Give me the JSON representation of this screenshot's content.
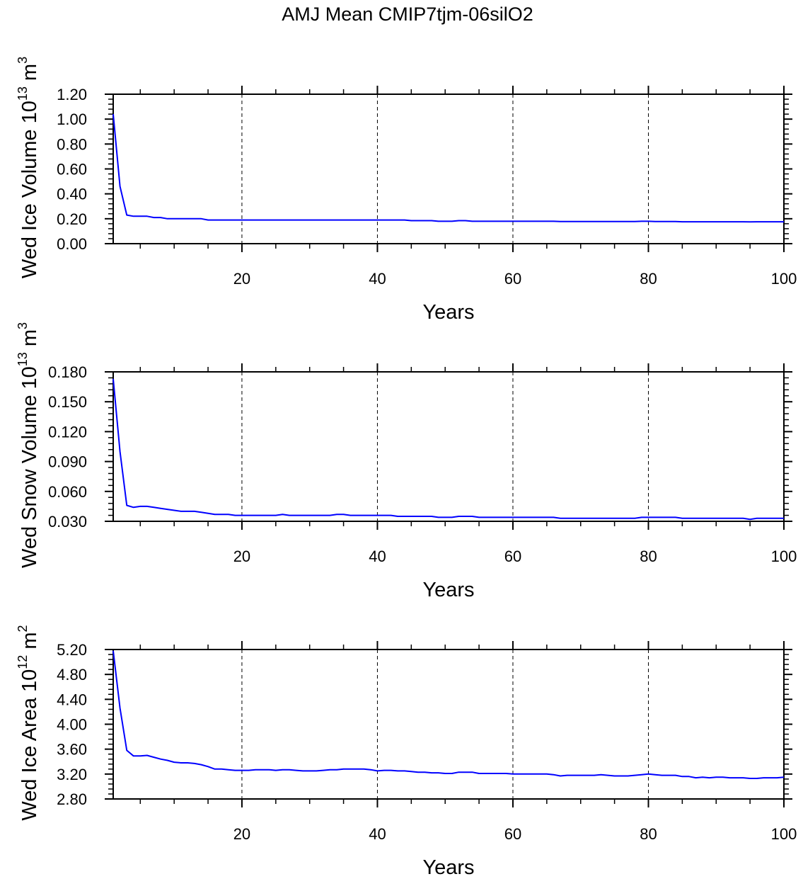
{
  "title": "AMJ Mean CMIP7tjm-06silO2",
  "line_color": "#0000ff",
  "chart_data": [
    {
      "type": "line",
      "xlabel": "Years",
      "ylabel": "Wed Ice Volume",
      "ylabel_units": {
        "base": "10",
        "exp": "13",
        "unit": "m",
        "unit_exp": "3"
      },
      "xlim": [
        1,
        100
      ],
      "ylim": [
        0,
        1.2
      ],
      "xticks": [
        20,
        40,
        60,
        80,
        100
      ],
      "xtick_labels": [
        "20",
        "40",
        "60",
        "80",
        "100"
      ],
      "yticks": [
        0,
        0.2,
        0.4,
        0.6,
        0.8,
        1.0,
        1.2
      ],
      "ytick_labels": [
        "0.00",
        "0.20",
        "0.40",
        "0.60",
        "0.80",
        "1.00",
        "1.20"
      ],
      "y_minor_per_major": 5,
      "grid": "dashed vertical at x major ticks",
      "values": [
        1.04,
        0.46,
        0.23,
        0.22,
        0.22,
        0.22,
        0.21,
        0.21,
        0.2,
        0.2,
        0.2,
        0.2,
        0.2,
        0.2,
        0.19,
        0.19,
        0.19,
        0.19,
        0.19,
        0.19,
        0.19,
        0.19,
        0.19,
        0.19,
        0.19,
        0.19,
        0.19,
        0.19,
        0.19,
        0.19,
        0.19,
        0.19,
        0.19,
        0.19,
        0.19,
        0.19,
        0.19,
        0.19,
        0.19,
        0.19,
        0.19,
        0.19,
        0.19,
        0.19,
        0.185,
        0.185,
        0.185,
        0.185,
        0.18,
        0.18,
        0.18,
        0.185,
        0.185,
        0.18,
        0.18,
        0.18,
        0.18,
        0.18,
        0.18,
        0.18,
        0.18,
        0.18,
        0.18,
        0.18,
        0.18,
        0.18,
        0.178,
        0.178,
        0.178,
        0.178,
        0.178,
        0.178,
        0.178,
        0.178,
        0.178,
        0.178,
        0.178,
        0.178,
        0.18,
        0.18,
        0.178,
        0.178,
        0.178,
        0.178,
        0.176,
        0.176,
        0.176,
        0.176,
        0.176,
        0.176,
        0.176,
        0.176,
        0.176,
        0.176,
        0.175,
        0.176,
        0.176,
        0.176,
        0.176,
        0.176
      ]
    },
    {
      "type": "line",
      "xlabel": "Years",
      "ylabel": "Wed Snow Volume",
      "ylabel_units": {
        "base": "10",
        "exp": "13",
        "unit": "m",
        "unit_exp": "3"
      },
      "xlim": [
        1,
        100
      ],
      "ylim": [
        0.03,
        0.18
      ],
      "xticks": [
        20,
        40,
        60,
        80,
        100
      ],
      "xtick_labels": [
        "20",
        "40",
        "60",
        "80",
        "100"
      ],
      "yticks": [
        0.03,
        0.06,
        0.09,
        0.12,
        0.15,
        0.18
      ],
      "ytick_labels": [
        "0.030",
        "0.060",
        "0.090",
        "0.120",
        "0.150",
        "0.180"
      ],
      "y_minor_per_major": 5,
      "grid": "dashed vertical at x major ticks",
      "values": [
        0.173,
        0.1,
        0.046,
        0.044,
        0.045,
        0.045,
        0.044,
        0.043,
        0.042,
        0.041,
        0.04,
        0.04,
        0.04,
        0.039,
        0.038,
        0.037,
        0.037,
        0.037,
        0.036,
        0.036,
        0.036,
        0.036,
        0.036,
        0.036,
        0.036,
        0.037,
        0.036,
        0.036,
        0.036,
        0.036,
        0.036,
        0.036,
        0.036,
        0.037,
        0.037,
        0.036,
        0.036,
        0.036,
        0.036,
        0.036,
        0.036,
        0.036,
        0.035,
        0.035,
        0.035,
        0.035,
        0.035,
        0.035,
        0.034,
        0.034,
        0.034,
        0.035,
        0.035,
        0.035,
        0.034,
        0.034,
        0.034,
        0.034,
        0.034,
        0.034,
        0.034,
        0.034,
        0.034,
        0.034,
        0.034,
        0.034,
        0.033,
        0.033,
        0.033,
        0.033,
        0.033,
        0.033,
        0.033,
        0.033,
        0.033,
        0.033,
        0.033,
        0.033,
        0.034,
        0.034,
        0.034,
        0.034,
        0.034,
        0.034,
        0.033,
        0.033,
        0.033,
        0.033,
        0.033,
        0.033,
        0.033,
        0.033,
        0.033,
        0.033,
        0.032,
        0.033,
        0.033,
        0.033,
        0.033,
        0.033
      ]
    },
    {
      "type": "line",
      "xlabel": "Years",
      "ylabel": "Wed Ice Area",
      "ylabel_units": {
        "base": "10",
        "exp": "12",
        "unit": "m",
        "unit_exp": "2"
      },
      "xlim": [
        1,
        100
      ],
      "ylim": [
        2.8,
        5.2
      ],
      "xticks": [
        20,
        40,
        60,
        80,
        100
      ],
      "xtick_labels": [
        "20",
        "40",
        "60",
        "80",
        "100"
      ],
      "yticks": [
        2.8,
        3.2,
        3.6,
        4.0,
        4.4,
        4.8,
        5.2
      ],
      "ytick_labels": [
        "2.80",
        "3.20",
        "3.60",
        "4.00",
        "4.40",
        "4.80",
        "5.20"
      ],
      "y_minor_per_major": 5,
      "grid": "dashed vertical at x major ticks",
      "values": [
        5.18,
        4.26,
        3.58,
        3.49,
        3.49,
        3.5,
        3.47,
        3.44,
        3.42,
        3.39,
        3.38,
        3.38,
        3.37,
        3.35,
        3.32,
        3.28,
        3.28,
        3.27,
        3.26,
        3.26,
        3.26,
        3.27,
        3.27,
        3.27,
        3.26,
        3.27,
        3.27,
        3.26,
        3.25,
        3.25,
        3.25,
        3.26,
        3.27,
        3.27,
        3.28,
        3.28,
        3.28,
        3.28,
        3.27,
        3.25,
        3.26,
        3.26,
        3.25,
        3.25,
        3.24,
        3.23,
        3.23,
        3.22,
        3.22,
        3.21,
        3.21,
        3.23,
        3.23,
        3.23,
        3.21,
        3.21,
        3.21,
        3.21,
        3.21,
        3.2,
        3.2,
        3.2,
        3.2,
        3.2,
        3.2,
        3.19,
        3.17,
        3.18,
        3.18,
        3.18,
        3.18,
        3.18,
        3.19,
        3.18,
        3.17,
        3.17,
        3.17,
        3.18,
        3.19,
        3.2,
        3.19,
        3.18,
        3.18,
        3.18,
        3.16,
        3.16,
        3.14,
        3.15,
        3.14,
        3.15,
        3.15,
        3.14,
        3.14,
        3.14,
        3.13,
        3.13,
        3.14,
        3.14,
        3.14,
        3.15
      ]
    }
  ]
}
